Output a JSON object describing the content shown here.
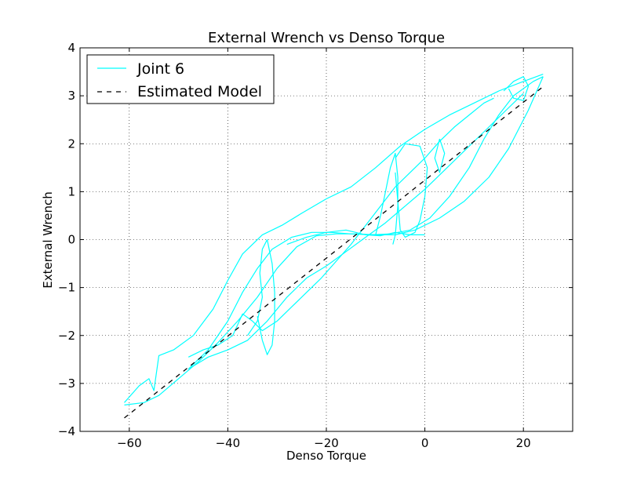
{
  "chart_data": {
    "type": "line",
    "title": "External Wrench vs Denso Torque",
    "xlabel": "Denso Torque",
    "ylabel": "External Wrench",
    "xlim": [
      -70,
      30
    ],
    "ylim": [
      -4,
      4
    ],
    "x_ticks": [
      -60,
      -40,
      -20,
      0,
      20
    ],
    "y_ticks": [
      -4,
      -3,
      -2,
      -1,
      0,
      1,
      2,
      3,
      4
    ],
    "x_tick_labels": [
      "−60",
      "−40",
      "−20",
      "0",
      "20"
    ],
    "y_tick_labels": [
      "−4",
      "−3",
      "−2",
      "−1",
      "0",
      "1",
      "2",
      "3",
      "4"
    ],
    "grid": true,
    "legend_position": "upper-left",
    "series": [
      {
        "name": "Joint 6",
        "style": "solid",
        "color": "#00ffff",
        "segments": [
          [
            [
              -61,
              -3.4
            ],
            [
              -58,
              -3.05
            ],
            [
              -56,
              -2.9
            ],
            [
              -55,
              -3.15
            ],
            [
              -54,
              -2.42
            ],
            [
              -51,
              -2.3
            ],
            [
              -47,
              -2.0
            ],
            [
              -43,
              -1.45
            ],
            [
              -40,
              -0.85
            ],
            [
              -37,
              -0.3
            ],
            [
              -33,
              0.1
            ],
            [
              -29,
              0.3
            ],
            [
              -25,
              0.55
            ],
            [
              -20,
              0.85
            ],
            [
              -15,
              1.1
            ],
            [
              -10,
              1.5
            ],
            [
              -5,
              1.95
            ],
            [
              0,
              2.3
            ],
            [
              5,
              2.6
            ],
            [
              10,
              2.85
            ],
            [
              15,
              3.1
            ],
            [
              20,
              3.3
            ],
            [
              24,
              3.45
            ]
          ],
          [
            [
              24,
              3.4
            ],
            [
              21,
              2.7
            ],
            [
              17,
              1.9
            ],
            [
              13,
              1.3
            ],
            [
              8,
              0.8
            ],
            [
              3,
              0.45
            ],
            [
              -2,
              0.2
            ],
            [
              -6,
              0.1
            ],
            [
              -10,
              0.1
            ],
            [
              -14,
              0.12
            ],
            [
              -18,
              0.12
            ],
            [
              -22,
              0.08
            ],
            [
              -26,
              -0.15
            ],
            [
              -30,
              -0.6
            ],
            [
              -34,
              -1.2
            ],
            [
              -38,
              -1.7
            ],
            [
              -42,
              -2.15
            ],
            [
              -46,
              -2.55
            ],
            [
              -50,
              -2.9
            ],
            [
              -54,
              -3.25
            ],
            [
              -57,
              -3.4
            ],
            [
              -61,
              -3.45
            ]
          ],
          [
            [
              -48,
              -2.7
            ],
            [
              -44,
              -2.3
            ],
            [
              -40,
              -1.7
            ],
            [
              -37,
              -1.1
            ],
            [
              -34,
              -0.6
            ],
            [
              -31,
              -0.2
            ],
            [
              -27,
              0.05
            ],
            [
              -23,
              0.15
            ],
            [
              -19,
              0.15
            ],
            [
              -15,
              0.12
            ],
            [
              -11,
              0.1
            ],
            [
              -7,
              0.12
            ],
            [
              -3,
              0.2
            ],
            [
              1,
              0.45
            ],
            [
              5,
              0.9
            ],
            [
              9,
              1.5
            ],
            [
              12,
              2.1
            ],
            [
              15,
              2.6
            ],
            [
              18,
              3.0
            ],
            [
              22,
              3.3
            ],
            [
              24,
              3.4
            ]
          ],
          [
            [
              -48,
              -2.7
            ],
            [
              -44,
              -2.45
            ],
            [
              -40,
              -2.3
            ],
            [
              -36,
              -2.1
            ],
            [
              -32,
              -1.7
            ],
            [
              -28,
              -1.2
            ],
            [
              -24,
              -0.8
            ],
            [
              -20,
              -0.55
            ],
            [
              -16,
              -0.25
            ],
            [
              -12,
              0.05
            ],
            [
              -8,
              0.35
            ],
            [
              -4,
              0.7
            ],
            [
              0,
              1.05
            ],
            [
              4,
              1.45
            ],
            [
              8,
              1.85
            ],
            [
              12,
              2.25
            ],
            [
              16,
              2.65
            ],
            [
              20,
              3.05
            ]
          ],
          [
            [
              -36,
              -2.0
            ],
            [
              -34,
              -1.7
            ],
            [
              -33,
              -1.2
            ],
            [
              -33.5,
              -0.7
            ],
            [
              -33,
              -0.2
            ],
            [
              -32,
              0.0
            ],
            [
              -31,
              -0.5
            ],
            [
              -30.5,
              -1.1
            ],
            [
              -30.5,
              -1.7
            ],
            [
              -31,
              -2.2
            ],
            [
              -32,
              -2.4
            ],
            [
              -33,
              -2.1
            ],
            [
              -34,
              -1.6
            ]
          ],
          [
            [
              -10,
              0.1
            ],
            [
              -9,
              0.5
            ],
            [
              -8,
              1.0
            ],
            [
              -7,
              1.5
            ],
            [
              -6,
              1.8
            ],
            [
              -5.5,
              1.3
            ],
            [
              -5.5,
              0.7
            ],
            [
              -6,
              0.1
            ],
            [
              -6.5,
              -0.1
            ]
          ],
          [
            [
              -6,
              1.7
            ],
            [
              -4,
              2.0
            ],
            [
              -1,
              1.95
            ],
            [
              0.5,
              1.5
            ],
            [
              0,
              0.9
            ],
            [
              -1,
              0.4
            ],
            [
              -2,
              0.15
            ],
            [
              -4,
              0.05
            ],
            [
              -5,
              0.2
            ],
            [
              -5.5,
              0.8
            ],
            [
              -6,
              1.4
            ]
          ],
          [
            [
              3,
              2.1
            ],
            [
              4,
              1.8
            ],
            [
              3,
              1.4
            ],
            [
              2,
              1.7
            ],
            [
              3,
              2.1
            ]
          ],
          [
            [
              -28,
              -0.1
            ],
            [
              -24,
              0.05
            ],
            [
              -20,
              0.15
            ],
            [
              -16,
              0.2
            ],
            [
              -12,
              0.1
            ],
            [
              -9,
              0.08
            ],
            [
              -6,
              0.15
            ],
            [
              -3,
              0.1
            ],
            [
              0,
              0.1
            ]
          ],
          [
            [
              16,
              3.1
            ],
            [
              18,
              3.3
            ],
            [
              20,
              3.4
            ],
            [
              21,
              3.2
            ],
            [
              20,
              2.9
            ],
            [
              18,
              2.95
            ],
            [
              17,
              3.15
            ]
          ],
          [
            [
              -48,
              -2.45
            ],
            [
              -45,
              -2.3
            ],
            [
              -42,
              -2.2
            ],
            [
              -39,
              -2.0
            ],
            [
              -37,
              -1.55
            ],
            [
              -35,
              -1.7
            ],
            [
              -33,
              -1.9
            ],
            [
              -30,
              -1.7
            ],
            [
              -27,
              -1.4
            ],
            [
              -24,
              -1.1
            ],
            [
              -21,
              -0.8
            ],
            [
              -18,
              -0.45
            ],
            [
              -15,
              -0.1
            ],
            [
              -12,
              0.3
            ],
            [
              -9,
              0.7
            ],
            [
              -6,
              1.1
            ],
            [
              -3,
              1.4
            ],
            [
              0,
              1.7
            ],
            [
              3,
              2.05
            ],
            [
              6,
              2.35
            ],
            [
              9,
              2.6
            ],
            [
              12,
              2.85
            ],
            [
              14,
              2.95
            ]
          ]
        ]
      },
      {
        "name": "Estimated Model",
        "style": "dashed",
        "color": "#000000",
        "x": [
          -61,
          24
        ],
        "y": [
          -3.72,
          3.19
        ]
      }
    ]
  }
}
